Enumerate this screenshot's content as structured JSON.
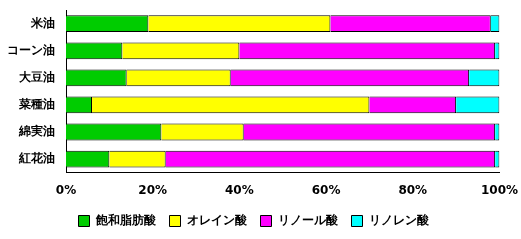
{
  "chart_data": {
    "type": "bar",
    "orientation": "horizontal",
    "stacked": true,
    "grid": false,
    "legend": "bottom",
    "categories": [
      "米油",
      "コーン油",
      "大豆油",
      "菜種油",
      "綿実油",
      "紅花油"
    ],
    "xlim": [
      0,
      100
    ],
    "xticks": [
      {
        "value": 0,
        "label": "0%"
      },
      {
        "value": 20,
        "label": "20%"
      },
      {
        "value": 40,
        "label": "40%"
      },
      {
        "value": 60,
        "label": "60%"
      },
      {
        "value": 80,
        "label": "80%"
      },
      {
        "value": 100,
        "label": "100%"
      }
    ],
    "series": [
      {
        "name": "飽和脂肪酸",
        "color": "#00cc00",
        "values": [
          19,
          13,
          14,
          6,
          22,
          10
        ]
      },
      {
        "name": "オレイン酸",
        "color": "#ffff00",
        "values": [
          42,
          27,
          24,
          64,
          19,
          13
        ]
      },
      {
        "name": "リノール酸",
        "color": "#ff00ff",
        "values": [
          37,
          59,
          55,
          20,
          58,
          76
        ]
      },
      {
        "name": "リノレン酸",
        "color": "#00ffff",
        "values": [
          2,
          1,
          7,
          10,
          1,
          1
        ]
      }
    ]
  }
}
